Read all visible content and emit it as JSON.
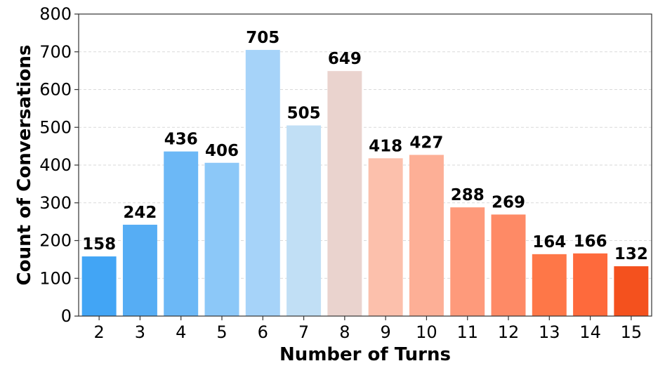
{
  "chart_data": {
    "type": "bar",
    "xlabel": "Number of Turns",
    "ylabel": "Count of Conversations",
    "categories": [
      "2",
      "3",
      "4",
      "5",
      "6",
      "7",
      "8",
      "9",
      "10",
      "11",
      "12",
      "13",
      "14",
      "15"
    ],
    "values": [
      158,
      242,
      436,
      406,
      705,
      505,
      649,
      418,
      427,
      288,
      269,
      164,
      166,
      132
    ],
    "colors": [
      "#42a5f5",
      "#56adf4",
      "#6cb8f6",
      "#8cc8f8",
      "#a6d3f9",
      "#c1dff5",
      "#ead3ce",
      "#fcc0ac",
      "#fdaf96",
      "#fe9a7b",
      "#fe8a66",
      "#fe7748",
      "#fe6a3c",
      "#f4511e"
    ],
    "ylim": [
      0,
      800
    ],
    "yticks": [
      0,
      100,
      200,
      300,
      400,
      500,
      600,
      700,
      800
    ],
    "grid": true,
    "data_labels": true
  }
}
